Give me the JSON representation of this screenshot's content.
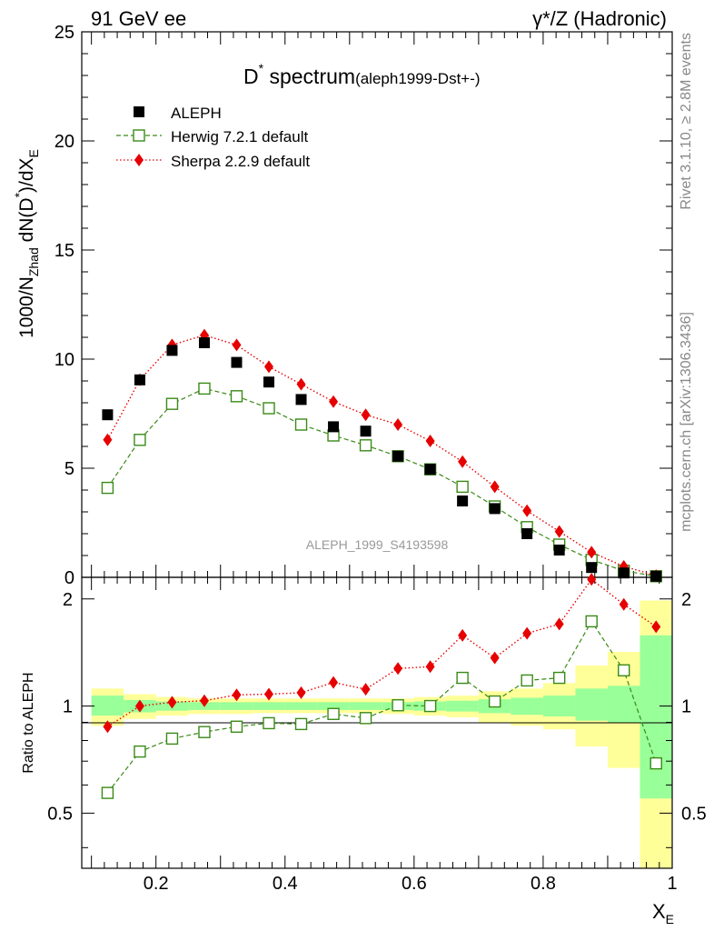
{
  "header": {
    "left": "91 GeV ee",
    "right": "γ*/Z (Hadronic)"
  },
  "side_notes": {
    "rivet": "Rivet 3.1.10, ≥ 2.8M events",
    "mcplots": "mcplots.cern.ch [arXiv:1306.3436]"
  },
  "watermark": "ALEPH_1999_S4193598",
  "title": {
    "main": "D",
    "sup": "*",
    "main2": " spectrum",
    "small": "(aleph1999-Dst+-)"
  },
  "colors": {
    "data": "#000000",
    "herwig": "#3a8a17",
    "sherpa": "#e60000",
    "band_inner": "#99ff99",
    "band_outer": "#ffff99"
  },
  "chart_data": [
    {
      "type": "scatter",
      "ylabel": "1000/N_Zhad dN(D*)/dX_E",
      "xlabel": "",
      "xlim": [
        0.085,
        1.0
      ],
      "ylim": [
        0,
        25
      ],
      "yticks": [
        0,
        5,
        10,
        15,
        20,
        25
      ],
      "xticks": [
        0.2,
        0.4,
        0.6,
        0.8,
        1
      ],
      "legend_position": "top-left",
      "x": [
        0.125,
        0.175,
        0.225,
        0.275,
        0.325,
        0.375,
        0.425,
        0.475,
        0.525,
        0.575,
        0.625,
        0.675,
        0.725,
        0.775,
        0.825,
        0.875,
        0.925,
        0.975
      ],
      "series": [
        {
          "name": "ALEPH",
          "marker": "square-filled",
          "values": [
            7.45,
            9.05,
            10.4,
            10.75,
            9.85,
            8.95,
            8.15,
            6.9,
            6.7,
            5.55,
            4.95,
            3.5,
            3.15,
            2.0,
            1.25,
            0.45,
            0.2,
            0.05
          ]
        },
        {
          "name": "Herwig 7.2.1 default",
          "marker": "square-open",
          "line": "dashed",
          "values": [
            4.1,
            6.3,
            7.95,
            8.65,
            8.3,
            7.75,
            7.0,
            6.5,
            6.05,
            5.55,
            4.95,
            4.15,
            3.25,
            2.3,
            1.5,
            0.8,
            0.3,
            0.05
          ]
        },
        {
          "name": "Sherpa 2.2.9 default",
          "marker": "diamond-filled",
          "line": "dotted",
          "values": [
            6.3,
            9.05,
            10.65,
            11.1,
            10.65,
            9.65,
            8.85,
            8.05,
            7.45,
            7.0,
            6.25,
            5.3,
            4.15,
            3.05,
            2.1,
            1.15,
            0.5,
            0.08
          ]
        }
      ]
    },
    {
      "type": "line",
      "ylabel": "Ratio to ALEPH",
      "xlabel": "X_E",
      "xlim": [
        0.085,
        1.0
      ],
      "ylim": [
        0.35,
        2.3
      ],
      "yticks": [
        0.5,
        1,
        2
      ],
      "xticks": [
        0.2,
        0.4,
        0.6,
        0.8,
        1
      ],
      "x": [
        0.125,
        0.175,
        0.225,
        0.275,
        0.325,
        0.375,
        0.425,
        0.475,
        0.525,
        0.575,
        0.625,
        0.675,
        0.725,
        0.775,
        0.825,
        0.875,
        0.925,
        0.975
      ],
      "bins": [
        [
          0.1,
          0.15
        ],
        [
          0.15,
          0.2
        ],
        [
          0.2,
          0.25
        ],
        [
          0.25,
          0.3
        ],
        [
          0.3,
          0.35
        ],
        [
          0.35,
          0.4
        ],
        [
          0.4,
          0.45
        ],
        [
          0.45,
          0.5
        ],
        [
          0.5,
          0.55
        ],
        [
          0.55,
          0.6
        ],
        [
          0.6,
          0.65
        ],
        [
          0.65,
          0.7
        ],
        [
          0.7,
          0.75
        ],
        [
          0.75,
          0.8
        ],
        [
          0.8,
          0.85
        ],
        [
          0.85,
          0.9
        ],
        [
          0.9,
          0.95
        ],
        [
          0.95,
          1.0
        ]
      ],
      "band_inner": [
        [
          0.94,
          1.07
        ],
        [
          0.96,
          1.04
        ],
        [
          0.97,
          1.03
        ],
        [
          0.975,
          1.025
        ],
        [
          0.975,
          1.025
        ],
        [
          0.975,
          1.025
        ],
        [
          0.975,
          1.025
        ],
        [
          0.975,
          1.025
        ],
        [
          0.975,
          1.025
        ],
        [
          0.975,
          1.025
        ],
        [
          0.97,
          1.03
        ],
        [
          0.965,
          1.035
        ],
        [
          0.955,
          1.045
        ],
        [
          0.945,
          1.055
        ],
        [
          0.935,
          1.07
        ],
        [
          0.91,
          1.12
        ],
        [
          0.9,
          1.14
        ],
        [
          0.55,
          1.58
        ]
      ],
      "band_outer": [
        [
          0.88,
          1.12
        ],
        [
          0.92,
          1.08
        ],
        [
          0.94,
          1.06
        ],
        [
          0.95,
          1.05
        ],
        [
          0.95,
          1.05
        ],
        [
          0.955,
          1.05
        ],
        [
          0.955,
          1.05
        ],
        [
          0.955,
          1.05
        ],
        [
          0.955,
          1.05
        ],
        [
          0.95,
          1.05
        ],
        [
          0.94,
          1.06
        ],
        [
          0.93,
          1.07
        ],
        [
          0.9,
          1.1
        ],
        [
          0.88,
          1.12
        ],
        [
          0.86,
          1.16
        ],
        [
          0.77,
          1.3
        ],
        [
          0.67,
          1.42
        ],
        [
          0.35,
          1.98
        ]
      ],
      "series": [
        {
          "name": "Herwig 7.2.1 default",
          "values": [
            0.57,
            0.745,
            0.81,
            0.845,
            0.875,
            0.895,
            0.89,
            0.95,
            0.925,
            1.005,
            1.0,
            1.2,
            1.03,
            1.18,
            1.2,
            1.73,
            1.26,
            0.69
          ]
        },
        {
          "name": "Sherpa 2.2.9 default",
          "values": [
            0.875,
            1.0,
            1.025,
            1.035,
            1.075,
            1.08,
            1.09,
            1.165,
            1.115,
            1.275,
            1.29,
            1.58,
            1.365,
            1.6,
            1.7,
            2.27,
            1.93,
            1.67
          ]
        }
      ]
    }
  ]
}
